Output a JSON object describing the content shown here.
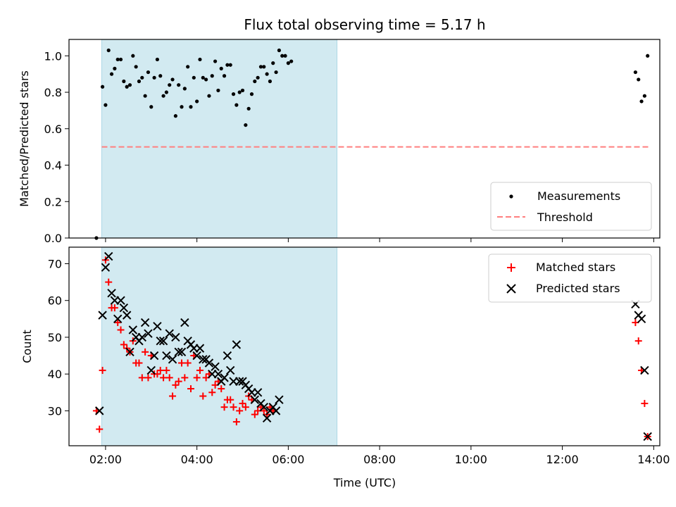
{
  "chart_data": [
    {
      "type": "scatter",
      "title": "Flux total observing time = 5.17 h",
      "xlabel": "",
      "ylabel": "Matched/Predicted stars",
      "ylim": [
        0,
        1.09
      ],
      "xlim": [
        "01:12",
        "14:08"
      ],
      "y_ticks": [
        "0.0",
        "0.2",
        "0.4",
        "0.6",
        "0.8",
        "1.0"
      ],
      "shaded_span": {
        "from": "01:55",
        "to": "07:04",
        "color": "#add8e6"
      },
      "legend_position": "lower-right",
      "series": [
        {
          "name": "Measurements",
          "marker": "dot",
          "color": "#000000",
          "points": [
            [
              "01:48",
              0.0
            ],
            [
              "01:56",
              0.83
            ],
            [
              "02:00",
              0.73
            ],
            [
              "02:04",
              1.03
            ],
            [
              "02:08",
              0.9
            ],
            [
              "02:12",
              0.93
            ],
            [
              "02:16",
              0.98
            ],
            [
              "02:20",
              0.98
            ],
            [
              "02:24",
              0.86
            ],
            [
              "02:28",
              0.83
            ],
            [
              "02:32",
              0.84
            ],
            [
              "02:36",
              1.0
            ],
            [
              "02:40",
              0.94
            ],
            [
              "02:44",
              0.86
            ],
            [
              "02:48",
              0.88
            ],
            [
              "02:52",
              0.78
            ],
            [
              "02:56",
              0.91
            ],
            [
              "03:00",
              0.72
            ],
            [
              "03:04",
              0.88
            ],
            [
              "03:08",
              0.98
            ],
            [
              "03:12",
              0.89
            ],
            [
              "03:16",
              0.78
            ],
            [
              "03:20",
              0.8
            ],
            [
              "03:24",
              0.84
            ],
            [
              "03:28",
              0.87
            ],
            [
              "03:32",
              0.67
            ],
            [
              "03:36",
              0.84
            ],
            [
              "03:40",
              0.72
            ],
            [
              "03:44",
              0.82
            ],
            [
              "03:48",
              0.94
            ],
            [
              "03:52",
              0.72
            ],
            [
              "03:56",
              0.88
            ],
            [
              "04:00",
              0.75
            ],
            [
              "04:04",
              0.98
            ],
            [
              "04:08",
              0.88
            ],
            [
              "04:12",
              0.87
            ],
            [
              "04:16",
              0.78
            ],
            [
              "04:20",
              0.89
            ],
            [
              "04:24",
              0.97
            ],
            [
              "04:28",
              0.81
            ],
            [
              "04:32",
              0.93
            ],
            [
              "04:36",
              0.89
            ],
            [
              "04:40",
              0.95
            ],
            [
              "04:44",
              0.95
            ],
            [
              "04:48",
              0.79
            ],
            [
              "04:52",
              0.73
            ],
            [
              "04:56",
              0.8
            ],
            [
              "05:00",
              0.81
            ],
            [
              "05:04",
              0.62
            ],
            [
              "05:08",
              0.71
            ],
            [
              "05:12",
              0.79
            ],
            [
              "05:16",
              0.86
            ],
            [
              "05:20",
              0.88
            ],
            [
              "05:24",
              0.94
            ],
            [
              "05:28",
              0.94
            ],
            [
              "05:32",
              0.9
            ],
            [
              "05:36",
              0.86
            ],
            [
              "05:40",
              0.96
            ],
            [
              "05:44",
              0.91
            ],
            [
              "05:48",
              1.03
            ],
            [
              "05:52",
              1.0
            ],
            [
              "05:56",
              1.0
            ],
            [
              "06:00",
              0.96
            ],
            [
              "06:04",
              0.97
            ],
            [
              "13:36",
              0.91
            ],
            [
              "13:40",
              0.87
            ],
            [
              "13:44",
              0.75
            ],
            [
              "13:48",
              0.78
            ],
            [
              "13:52",
              1.0
            ]
          ]
        },
        {
          "name": "Threshold",
          "marker": "dashed-line",
          "color": "#ff7f7f",
          "points": [
            [
              "01:55",
              0.5
            ],
            [
              "13:55",
              0.5
            ]
          ]
        }
      ]
    },
    {
      "type": "scatter",
      "title": "",
      "xlabel": "Time (UTC)",
      "ylabel": "Count",
      "ylim": [
        20.5,
        74.5
      ],
      "xlim": [
        "01:12",
        "14:08"
      ],
      "x_ticks": [
        "02:00",
        "04:00",
        "06:00",
        "08:00",
        "10:00",
        "12:00",
        "14:00"
      ],
      "y_ticks": [
        "30",
        "40",
        "50",
        "60",
        "70"
      ],
      "shaded_span": {
        "from": "01:55",
        "to": "07:04",
        "color": "#add8e6"
      },
      "legend_position": "upper-right",
      "series": [
        {
          "name": "Matched stars",
          "marker": "plus",
          "color": "#ff0000",
          "points": [
            [
              "01:48",
              30
            ],
            [
              "01:52",
              25
            ],
            [
              "01:56",
              41
            ],
            [
              "02:00",
              71
            ],
            [
              "02:04",
              65
            ],
            [
              "02:08",
              58
            ],
            [
              "02:12",
              58
            ],
            [
              "02:16",
              54
            ],
            [
              "02:20",
              52
            ],
            [
              "02:24",
              48
            ],
            [
              "02:28",
              47
            ],
            [
              "02:32",
              46
            ],
            [
              "02:36",
              49
            ],
            [
              "02:40",
              43
            ],
            [
              "02:44",
              43
            ],
            [
              "02:48",
              39
            ],
            [
              "02:52",
              46
            ],
            [
              "02:56",
              39
            ],
            [
              "03:00",
              45
            ],
            [
              "03:04",
              40
            ],
            [
              "03:08",
              40
            ],
            [
              "03:12",
              41
            ],
            [
              "03:16",
              39
            ],
            [
              "03:20",
              41
            ],
            [
              "03:24",
              39
            ],
            [
              "03:28",
              34
            ],
            [
              "03:32",
              37
            ],
            [
              "03:36",
              38
            ],
            [
              "03:40",
              43
            ],
            [
              "03:44",
              39
            ],
            [
              "03:48",
              43
            ],
            [
              "03:52",
              36
            ],
            [
              "03:56",
              45
            ],
            [
              "04:00",
              39
            ],
            [
              "04:04",
              41
            ],
            [
              "04:08",
              34
            ],
            [
              "04:12",
              39
            ],
            [
              "04:16",
              40
            ],
            [
              "04:20",
              35
            ],
            [
              "04:24",
              37
            ],
            [
              "04:28",
              38
            ],
            [
              "04:32",
              36
            ],
            [
              "04:36",
              31
            ],
            [
              "04:40",
              33
            ],
            [
              "04:44",
              33
            ],
            [
              "04:48",
              31
            ],
            [
              "04:52",
              27
            ],
            [
              "04:56",
              30
            ],
            [
              "05:00",
              32
            ],
            [
              "05:04",
              31
            ],
            [
              "05:08",
              34
            ],
            [
              "05:12",
              33
            ],
            [
              "05:16",
              29
            ],
            [
              "05:20",
              30
            ],
            [
              "05:24",
              31
            ],
            [
              "05:28",
              30
            ],
            [
              "05:32",
              29
            ],
            [
              "05:36",
              31
            ],
            [
              "05:40",
              30
            ],
            [
              "13:36",
              54
            ],
            [
              "13:40",
              49
            ],
            [
              "13:44",
              41
            ],
            [
              "13:48",
              32
            ],
            [
              "13:52",
              23
            ]
          ]
        },
        {
          "name": "Predicted stars",
          "marker": "x",
          "color": "#000000",
          "points": [
            [
              "01:52",
              30
            ],
            [
              "01:56",
              56
            ],
            [
              "02:00",
              69
            ],
            [
              "02:04",
              72
            ],
            [
              "02:08",
              62
            ],
            [
              "02:12",
              60
            ],
            [
              "02:16",
              55
            ],
            [
              "02:20",
              60
            ],
            [
              "02:24",
              58
            ],
            [
              "02:28",
              56
            ],
            [
              "02:32",
              46
            ],
            [
              "02:36",
              52
            ],
            [
              "02:40",
              50
            ],
            [
              "02:44",
              49
            ],
            [
              "02:48",
              50
            ],
            [
              "02:52",
              54
            ],
            [
              "02:56",
              51
            ],
            [
              "03:00",
              41
            ],
            [
              "03:04",
              45
            ],
            [
              "03:08",
              53
            ],
            [
              "03:12",
              49
            ],
            [
              "03:16",
              49
            ],
            [
              "03:20",
              45
            ],
            [
              "03:24",
              51
            ],
            [
              "03:28",
              44
            ],
            [
              "03:32",
              50
            ],
            [
              "03:36",
              46
            ],
            [
              "03:40",
              46
            ],
            [
              "03:44",
              54
            ],
            [
              "03:48",
              49
            ],
            [
              "03:52",
              48
            ],
            [
              "03:56",
              47
            ],
            [
              "04:00",
              45
            ],
            [
              "04:04",
              47
            ],
            [
              "04:08",
              44
            ],
            [
              "04:12",
              44
            ],
            [
              "04:16",
              43
            ],
            [
              "04:20",
              40
            ],
            [
              "04:24",
              42
            ],
            [
              "04:28",
              40
            ],
            [
              "04:32",
              38
            ],
            [
              "04:36",
              39
            ],
            [
              "04:40",
              45
            ],
            [
              "04:44",
              41
            ],
            [
              "04:48",
              38
            ],
            [
              "04:52",
              48
            ],
            [
              "04:56",
              38
            ],
            [
              "05:00",
              38
            ],
            [
              "05:04",
              37
            ],
            [
              "05:08",
              36
            ],
            [
              "05:12",
              35
            ],
            [
              "05:16",
              33
            ],
            [
              "05:20",
              35
            ],
            [
              "05:24",
              32
            ],
            [
              "05:28",
              31
            ],
            [
              "05:32",
              28
            ],
            [
              "05:36",
              30
            ],
            [
              "05:40",
              31
            ],
            [
              "05:44",
              30
            ],
            [
              "05:48",
              33
            ],
            [
              "13:36",
              59
            ],
            [
              "13:40",
              56
            ],
            [
              "13:44",
              55
            ],
            [
              "13:48",
              41
            ],
            [
              "13:52",
              23
            ]
          ]
        }
      ]
    }
  ]
}
